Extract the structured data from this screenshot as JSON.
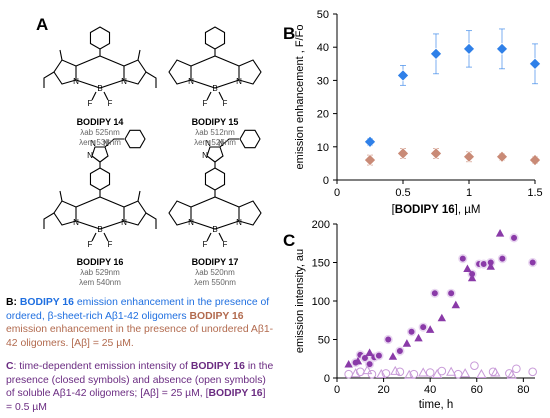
{
  "panelA": {
    "letter": "A",
    "molecules": [
      {
        "name": "BODIPY 14",
        "abs": "λab 525nm",
        "em": "λem 538nm"
      },
      {
        "name": "BODIPY 15",
        "abs": "λab 512nm",
        "em": "λem 525nm"
      },
      {
        "name": "BODIPY 16",
        "abs": "λab 529nm",
        "em": "λem 540nm"
      },
      {
        "name": "BODIPY 17",
        "abs": "λab 520nm",
        "em": "λem 550nm"
      }
    ],
    "atoms": {
      "n": "N",
      "b": "B",
      "f": "F"
    }
  },
  "captions": {
    "b_label": "B:",
    "b_blue": "BODIPY 16",
    "b_text1": " emission enhancement in the presence of ordered, β-sheet-rich Aβ1-42 oligomers",
    "b_brown": "BODIPY 16",
    "b_text2": " emission enhancement in the presence of unordered Aβ1-42 oligomers. [Aβ] = 25 µM.",
    "c_label": "C",
    "c_text1": ": time-dependent emission intensity of ",
    "c_bold": "BODIPY 16",
    "c_text2": " in the presence (closed symbols) and absence (open symbols) of soluble Aβ1-42 oligomers; [Aβ] = 25 µM, [",
    "c_bold2": "BODIPY 16",
    "c_text3": "] = 0.5 µM"
  },
  "colors": {
    "blue": "#2f80e8",
    "brown": "#c98a76",
    "purple": "#8a3aa8",
    "open": "#c89ad8"
  },
  "chart_data": [
    {
      "panel": "B",
      "type": "scatter",
      "xlabel_pre": "[",
      "xlabel_bold": "BODIPY 16",
      "xlabel_post": "], µM",
      "ylabel": "emission enhancement , F/Fo",
      "xlim": [
        0,
        1.5
      ],
      "ylim": [
        0,
        50
      ],
      "xticks": [
        "0",
        "0.5",
        "1",
        "1.5"
      ],
      "yticks": [
        "0",
        "10",
        "20",
        "30",
        "40",
        "50"
      ],
      "series": [
        {
          "marker": "diamond",
          "color": "#2f80e8",
          "points": [
            {
              "x": 0.25,
              "y": 11.5,
              "err": 1.0
            },
            {
              "x": 0.5,
              "y": 31.5,
              "err": 3.0
            },
            {
              "x": 0.75,
              "y": 38.0,
              "err": 6.0
            },
            {
              "x": 1.0,
              "y": 39.5,
              "err": 5.5
            },
            {
              "x": 1.25,
              "y": 39.5,
              "err": 6.0
            },
            {
              "x": 1.5,
              "y": 35.0,
              "err": 6.0
            }
          ]
        },
        {
          "marker": "diamond",
          "color": "#c98a76",
          "points": [
            {
              "x": 0.25,
              "y": 6.0,
              "err": 1.5
            },
            {
              "x": 0.5,
              "y": 8.0,
              "err": 1.5
            },
            {
              "x": 0.75,
              "y": 8.0,
              "err": 1.5
            },
            {
              "x": 1.0,
              "y": 7.0,
              "err": 1.5
            },
            {
              "x": 1.25,
              "y": 7.0,
              "err": 1.0
            },
            {
              "x": 1.5,
              "y": 6.0,
              "err": 1.0
            }
          ]
        }
      ]
    },
    {
      "panel": "C",
      "type": "scatter",
      "xlabel": "time, h",
      "ylabel": "emission intensity, au",
      "xlim": [
        0,
        85
      ],
      "ylim": [
        0,
        200
      ],
      "xticks": [
        "0",
        "20",
        "40",
        "60",
        "80"
      ],
      "yticks": [
        "0",
        "50",
        "100",
        "150",
        "200"
      ],
      "series": [
        {
          "marker": "circle",
          "filled": true,
          "color": "#8a3aa8",
          "points": [
            [
              8,
              20
            ],
            [
              10,
              30
            ],
            [
              12,
              26
            ],
            [
              14,
              18
            ],
            [
              16,
              27
            ],
            [
              18,
              29
            ],
            [
              22,
              50
            ],
            [
              27,
              35
            ],
            [
              32,
              60
            ],
            [
              37,
              66
            ],
            [
              42,
              110
            ],
            [
              49,
              110
            ],
            [
              54,
              155
            ],
            [
              58,
              135
            ],
            [
              61,
              148
            ],
            [
              63,
              148
            ],
            [
              66,
              150
            ],
            [
              71,
              155
            ],
            [
              76,
              182
            ],
            [
              84,
              150
            ]
          ]
        },
        {
          "marker": "triangle",
          "filled": true,
          "color": "#8a3aa8",
          "points": [
            [
              5,
              18
            ],
            [
              9,
              22
            ],
            [
              14,
              33
            ],
            [
              24,
              28
            ],
            [
              30,
              45
            ],
            [
              35,
              52
            ],
            [
              40,
              63
            ],
            [
              45,
              78
            ],
            [
              51,
              95
            ],
            [
              56,
              142
            ],
            [
              58,
              130
            ],
            [
              66,
              145
            ],
            [
              70,
              188
            ]
          ]
        },
        {
          "marker": "circle",
          "filled": false,
          "color": "#c89ad8",
          "points": [
            [
              5,
              5
            ],
            [
              10,
              8
            ],
            [
              15,
              5
            ],
            [
              21,
              6
            ],
            [
              27,
              8
            ],
            [
              33,
              5
            ],
            [
              40,
              7
            ],
            [
              45,
              9
            ],
            [
              52,
              5
            ],
            [
              59,
              16
            ],
            [
              67,
              8
            ],
            [
              74,
              6
            ],
            [
              77,
              12
            ],
            [
              84,
              8
            ]
          ]
        },
        {
          "marker": "triangle",
          "filled": false,
          "color": "#c89ad8",
          "points": [
            [
              8,
              6
            ],
            [
              13,
              10
            ],
            [
              19,
              5
            ],
            [
              25,
              9
            ],
            [
              31,
              4
            ],
            [
              37,
              7
            ],
            [
              43,
              5
            ],
            [
              49,
              8
            ],
            [
              55,
              6
            ],
            [
              62,
              5
            ],
            [
              68,
              7
            ],
            [
              75,
              4
            ]
          ]
        }
      ]
    }
  ]
}
